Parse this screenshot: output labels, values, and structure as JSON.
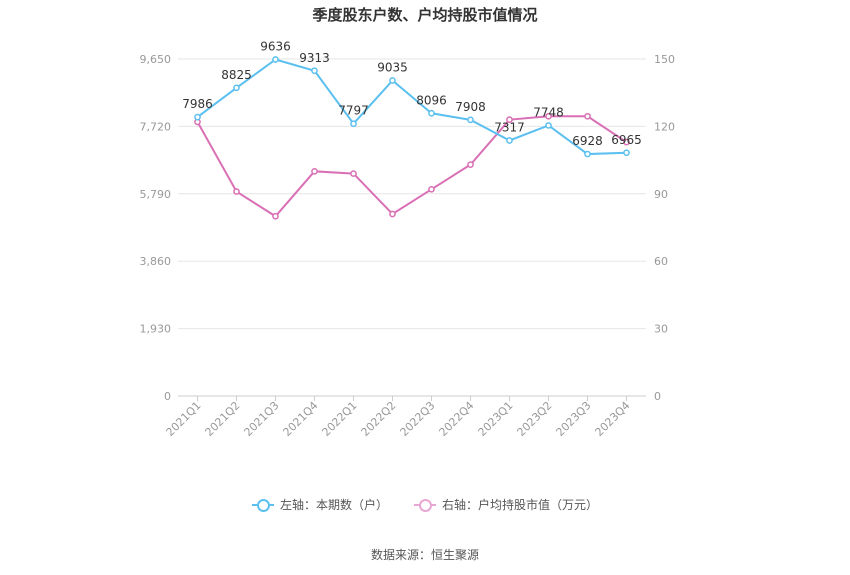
{
  "title": "季度股东户数、户均持股市值情况",
  "source": "数据来源：恒生聚源",
  "colors": {
    "left": "#5bc0ef",
    "right": "#d96fb4",
    "grid": "#e6e6e6",
    "axis": "#999999"
  },
  "legend": {
    "left_label": "左轴：本期数（户）",
    "right_label": "右轴：户均持股市值（万元）"
  },
  "chart_data": {
    "type": "line",
    "categories": [
      "2021Q1",
      "2021Q2",
      "2021Q3",
      "2021Q4",
      "2022Q1",
      "2022Q2",
      "2022Q3",
      "2022Q4",
      "2023Q1",
      "2023Q2",
      "2023Q3",
      "2023Q4"
    ],
    "left_axis": {
      "min": 0,
      "max": 9650,
      "ticks": [
        "0",
        "1,930",
        "3,860",
        "5,790",
        "7,720",
        "9,650"
      ]
    },
    "right_axis": {
      "min": 0,
      "max": 150,
      "ticks": [
        "0",
        "30",
        "60",
        "90",
        "120",
        "150"
      ]
    },
    "series": [
      {
        "name": "左轴：本期数（户）",
        "axis": "left",
        "values": [
          7986,
          8825,
          9636,
          9313,
          7797,
          9035,
          8096,
          7908,
          7317,
          7748,
          6928,
          6965
        ],
        "labels": [
          "7986",
          "8825",
          "9636",
          "9313",
          "7797",
          "9035",
          "8096",
          "7908",
          "7317",
          "7748",
          "6928",
          "6965"
        ]
      },
      {
        "name": "右轴：户均持股市值（万元）",
        "axis": "right",
        "values": [
          122,
          91,
          80,
          100,
          99,
          81,
          92,
          103,
          123,
          124.5,
          124.5,
          113
        ]
      }
    ]
  }
}
